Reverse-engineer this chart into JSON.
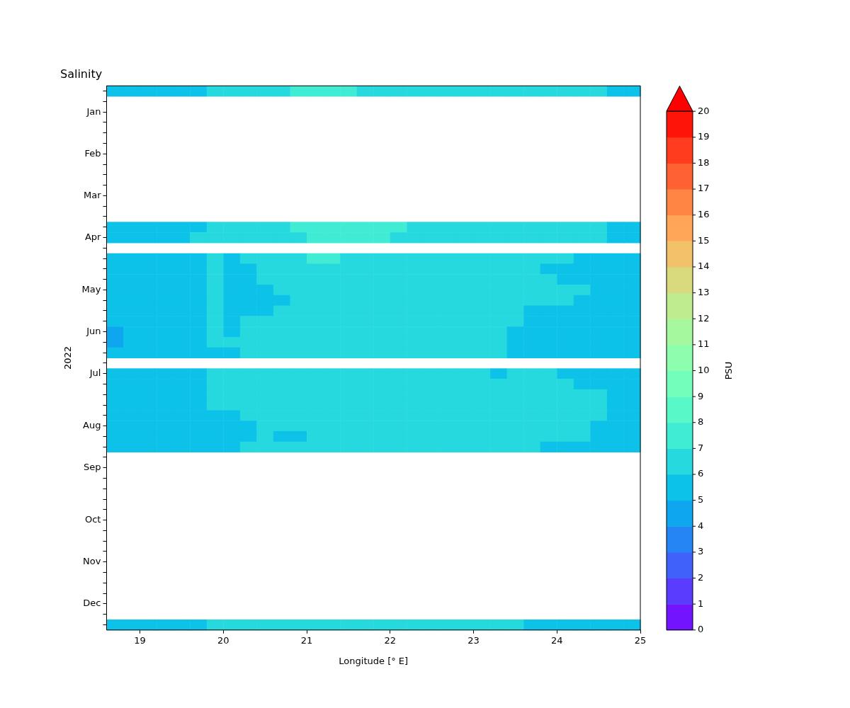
{
  "chart_data": {
    "type": "heatmap",
    "title": "Salinity",
    "xlabel": "Longitude [° E]",
    "ylabel": "2022",
    "clabel": "PSU",
    "x": [
      18.7,
      18.9,
      19.1,
      19.3,
      19.5,
      19.7,
      19.9,
      20.1,
      20.3,
      20.5,
      20.7,
      20.9,
      21.1,
      21.3,
      21.5,
      21.7,
      21.9,
      22.1,
      22.3,
      22.5,
      22.7,
      22.9,
      23.1,
      23.3,
      23.5,
      23.7,
      23.9,
      24.1,
      24.3,
      24.5,
      24.7,
      24.9
    ],
    "xlim": [
      18.6,
      25
    ],
    "xticks": [
      19,
      20,
      21,
      22,
      23,
      24,
      25
    ],
    "y_categories": [
      null,
      null,
      "Jan",
      null,
      null,
      null,
      "Feb",
      null,
      null,
      null,
      "Mar",
      null,
      null,
      null,
      "Apr",
      null,
      null,
      null,
      null,
      "May",
      null,
      null,
      null,
      "Jun",
      null,
      null,
      null,
      "Jul",
      null,
      null,
      null,
      null,
      "Aug",
      null,
      null,
      null,
      "Sep",
      null,
      null,
      null,
      null,
      "Oct",
      null,
      null,
      null,
      "Nov",
      null,
      null,
      null,
      "Dec",
      null,
      null
    ],
    "clim": [
      0,
      20
    ],
    "cticks": [
      0,
      1,
      2,
      3,
      4,
      5,
      6,
      7,
      8,
      9,
      10,
      11,
      12,
      13,
      14,
      15,
      16,
      17,
      18,
      19,
      20
    ],
    "cells": [
      [
        5.5,
        5.5,
        5.5,
        5.5,
        5.5,
        5.5,
        6.5,
        6.5,
        6.5,
        6.5,
        6.5,
        7.5,
        7.5,
        7.5,
        7.5,
        6.5,
        6.5,
        6.5,
        6.5,
        6.5,
        6.5,
        6.5,
        6.5,
        6.5,
        6.5,
        6.5,
        6.5,
        6.5,
        6.5,
        6.5,
        5.5,
        5.5
      ],
      null,
      null,
      null,
      null,
      null,
      null,
      null,
      null,
      null,
      null,
      null,
      null,
      [
        5.5,
        5.5,
        5.5,
        5.5,
        5.5,
        5.5,
        6.5,
        6.5,
        6.5,
        6.5,
        6.5,
        7.5,
        7.5,
        7.5,
        7.5,
        7.5,
        7.5,
        7.5,
        6.5,
        6.5,
        6.5,
        6.5,
        6.5,
        6.5,
        6.5,
        6.5,
        6.5,
        6.5,
        6.5,
        6.5,
        5.5,
        5.5
      ],
      [
        5.5,
        5.5,
        5.5,
        5.5,
        5.5,
        6.5,
        6.5,
        6.5,
        6.5,
        6.5,
        6.5,
        6.5,
        7.5,
        7.5,
        7.5,
        7.5,
        7.5,
        6.5,
        6.5,
        6.5,
        6.5,
        6.5,
        6.5,
        6.5,
        6.5,
        6.5,
        6.5,
        6.5,
        6.5,
        6.5,
        5.5,
        5.5
      ],
      null,
      [
        5.5,
        5.5,
        5.5,
        5.5,
        5.5,
        5.5,
        6.5,
        5.5,
        6.5,
        6.5,
        6.5,
        6.5,
        7.5,
        7.5,
        6.5,
        6.5,
        6.5,
        6.5,
        6.5,
        6.5,
        6.5,
        6.5,
        6.5,
        6.5,
        6.5,
        6.5,
        6.5,
        6.5,
        5.5,
        5.5,
        5.5,
        5.5
      ],
      [
        5.5,
        5.5,
        5.5,
        5.5,
        5.5,
        5.5,
        6.5,
        5.5,
        5.5,
        6.5,
        6.5,
        6.5,
        6.5,
        6.5,
        6.5,
        6.5,
        6.5,
        6.5,
        6.5,
        6.5,
        6.5,
        6.5,
        6.5,
        6.5,
        6.5,
        6.5,
        5.5,
        5.5,
        5.5,
        5.5,
        5.5,
        5.5
      ],
      [
        5.5,
        5.5,
        5.5,
        5.5,
        5.5,
        5.5,
        6.5,
        5.5,
        5.5,
        6.5,
        6.5,
        6.5,
        6.5,
        6.5,
        6.5,
        6.5,
        6.5,
        6.5,
        6.5,
        6.5,
        6.5,
        6.5,
        6.5,
        6.5,
        6.5,
        6.5,
        6.5,
        5.5,
        5.5,
        5.5,
        5.5,
        5.5
      ],
      [
        5.5,
        5.5,
        5.5,
        5.5,
        5.5,
        5.5,
        6.5,
        5.5,
        5.5,
        5.5,
        6.5,
        6.5,
        6.5,
        6.5,
        6.5,
        6.5,
        6.5,
        6.5,
        6.5,
        6.5,
        6.5,
        6.5,
        6.5,
        6.5,
        6.5,
        6.5,
        6.5,
        6.5,
        6.5,
        5.5,
        5.5,
        5.5
      ],
      [
        5.5,
        5.5,
        5.5,
        5.5,
        5.5,
        5.5,
        6.5,
        5.5,
        5.5,
        5.5,
        5.5,
        6.5,
        6.5,
        6.5,
        6.5,
        6.5,
        6.5,
        6.5,
        6.5,
        6.5,
        6.5,
        6.5,
        6.5,
        6.5,
        6.5,
        6.5,
        6.5,
        6.5,
        5.5,
        5.5,
        5.5,
        5.5
      ],
      [
        5.5,
        5.5,
        5.5,
        5.5,
        5.5,
        5.5,
        6.5,
        5.5,
        5.5,
        5.5,
        6.5,
        6.5,
        6.5,
        6.5,
        6.5,
        6.5,
        6.5,
        6.5,
        6.5,
        6.5,
        6.5,
        6.5,
        6.5,
        6.5,
        6.5,
        5.5,
        5.5,
        5.5,
        5.5,
        5.5,
        5.5,
        5.5
      ],
      [
        5.5,
        5.5,
        5.5,
        5.5,
        5.5,
        5.5,
        6.5,
        5.5,
        6.5,
        6.5,
        6.5,
        6.5,
        6.5,
        6.5,
        6.5,
        6.5,
        6.5,
        6.5,
        6.5,
        6.5,
        6.5,
        6.5,
        6.5,
        6.5,
        6.5,
        5.5,
        5.5,
        5.5,
        5.5,
        5.5,
        5.5,
        5.5
      ],
      [
        4.5,
        5.5,
        5.5,
        5.5,
        5.5,
        5.5,
        6.5,
        5.5,
        6.5,
        6.5,
        6.5,
        6.5,
        6.5,
        6.5,
        6.5,
        6.5,
        6.5,
        6.5,
        6.5,
        6.5,
        6.5,
        6.5,
        6.5,
        6.5,
        5.5,
        5.5,
        5.5,
        5.5,
        5.5,
        5.5,
        5.5,
        5.5
      ],
      [
        4.5,
        5.5,
        5.5,
        5.5,
        5.5,
        5.5,
        6.5,
        6.5,
        6.5,
        6.5,
        6.5,
        6.5,
        6.5,
        6.5,
        6.5,
        6.5,
        6.5,
        6.5,
        6.5,
        6.5,
        6.5,
        6.5,
        6.5,
        6.5,
        5.5,
        5.5,
        5.5,
        5.5,
        5.5,
        5.5,
        5.5,
        5.5
      ],
      [
        5.5,
        5.5,
        5.5,
        5.5,
        5.5,
        5.5,
        5.5,
        5.5,
        6.5,
        6.5,
        6.5,
        6.5,
        6.5,
        6.5,
        6.5,
        6.5,
        6.5,
        6.5,
        6.5,
        6.5,
        6.5,
        6.5,
        6.5,
        6.5,
        5.5,
        5.5,
        5.5,
        5.5,
        5.5,
        5.5,
        5.5,
        5.5
      ],
      null,
      [
        5.5,
        5.5,
        5.5,
        5.5,
        5.5,
        5.5,
        6.5,
        6.5,
        6.5,
        6.5,
        6.5,
        6.5,
        6.5,
        6.5,
        6.5,
        6.5,
        6.5,
        6.5,
        6.5,
        6.5,
        6.5,
        6.5,
        6.5,
        5.5,
        6.5,
        6.5,
        6.5,
        5.5,
        5.5,
        5.5,
        5.5,
        5.5
      ],
      [
        5.5,
        5.5,
        5.5,
        5.5,
        5.5,
        5.5,
        6.5,
        6.5,
        6.5,
        6.5,
        6.5,
        6.5,
        6.5,
        6.5,
        6.5,
        6.5,
        6.5,
        6.5,
        6.5,
        6.5,
        6.5,
        6.5,
        6.5,
        6.5,
        6.5,
        6.5,
        6.5,
        6.5,
        5.5,
        5.5,
        5.5,
        5.5
      ],
      [
        5.5,
        5.5,
        5.5,
        5.5,
        5.5,
        5.5,
        6.5,
        6.5,
        6.5,
        6.5,
        6.5,
        6.5,
        6.5,
        6.5,
        6.5,
        6.5,
        6.5,
        6.5,
        6.5,
        6.5,
        6.5,
        6.5,
        6.5,
        6.5,
        6.5,
        6.5,
        6.5,
        6.5,
        6.5,
        6.5,
        5.5,
        5.5
      ],
      [
        5.5,
        5.5,
        5.5,
        5.5,
        5.5,
        5.5,
        6.5,
        6.5,
        6.5,
        6.5,
        6.5,
        6.5,
        6.5,
        6.5,
        6.5,
        6.5,
        6.5,
        6.5,
        6.5,
        6.5,
        6.5,
        6.5,
        6.5,
        6.5,
        6.5,
        6.5,
        6.5,
        6.5,
        6.5,
        6.5,
        5.5,
        5.5
      ],
      [
        5.5,
        5.5,
        5.5,
        5.5,
        5.5,
        5.5,
        5.5,
        5.5,
        6.5,
        6.5,
        6.5,
        6.5,
        6.5,
        6.5,
        6.5,
        6.5,
        6.5,
        6.5,
        6.5,
        6.5,
        6.5,
        6.5,
        6.5,
        6.5,
        6.5,
        6.5,
        6.5,
        6.5,
        6.5,
        6.5,
        5.5,
        5.5
      ],
      [
        5.5,
        5.5,
        5.5,
        5.5,
        5.5,
        5.5,
        5.5,
        5.5,
        5.5,
        6.5,
        6.5,
        6.5,
        6.5,
        6.5,
        6.5,
        6.5,
        6.5,
        6.5,
        6.5,
        6.5,
        6.5,
        6.5,
        6.5,
        6.5,
        6.5,
        6.5,
        6.5,
        6.5,
        6.5,
        5.5,
        5.5,
        5.5
      ],
      [
        5.5,
        5.5,
        5.5,
        5.5,
        5.5,
        5.5,
        5.5,
        5.5,
        5.5,
        6.5,
        5.5,
        5.5,
        6.5,
        6.5,
        6.5,
        6.5,
        6.5,
        6.5,
        6.5,
        6.5,
        6.5,
        6.5,
        6.5,
        6.5,
        6.5,
        6.5,
        6.5,
        6.5,
        6.5,
        5.5,
        5.5,
        5.5
      ],
      [
        5.5,
        5.5,
        5.5,
        5.5,
        5.5,
        5.5,
        5.5,
        5.5,
        6.5,
        6.5,
        6.5,
        6.5,
        6.5,
        6.5,
        6.5,
        6.5,
        6.5,
        6.5,
        6.5,
        6.5,
        6.5,
        6.5,
        6.5,
        6.5,
        6.5,
        6.5,
        5.5,
        5.5,
        5.5,
        5.5,
        5.5,
        5.5
      ],
      null,
      null,
      null,
      null,
      null,
      null,
      null,
      null,
      null,
      null,
      null,
      null,
      null,
      null,
      null,
      null,
      [
        5.5,
        5.5,
        5.5,
        5.5,
        5.5,
        5.5,
        6.5,
        6.5,
        6.5,
        6.5,
        6.5,
        6.5,
        6.5,
        6.5,
        6.5,
        6.5,
        6.5,
        6.5,
        6.5,
        6.5,
        6.5,
        6.5,
        6.5,
        6.5,
        6.5,
        5.5,
        5.5,
        5.5,
        5.5,
        5.5,
        5.5,
        5.5
      ]
    ]
  }
}
